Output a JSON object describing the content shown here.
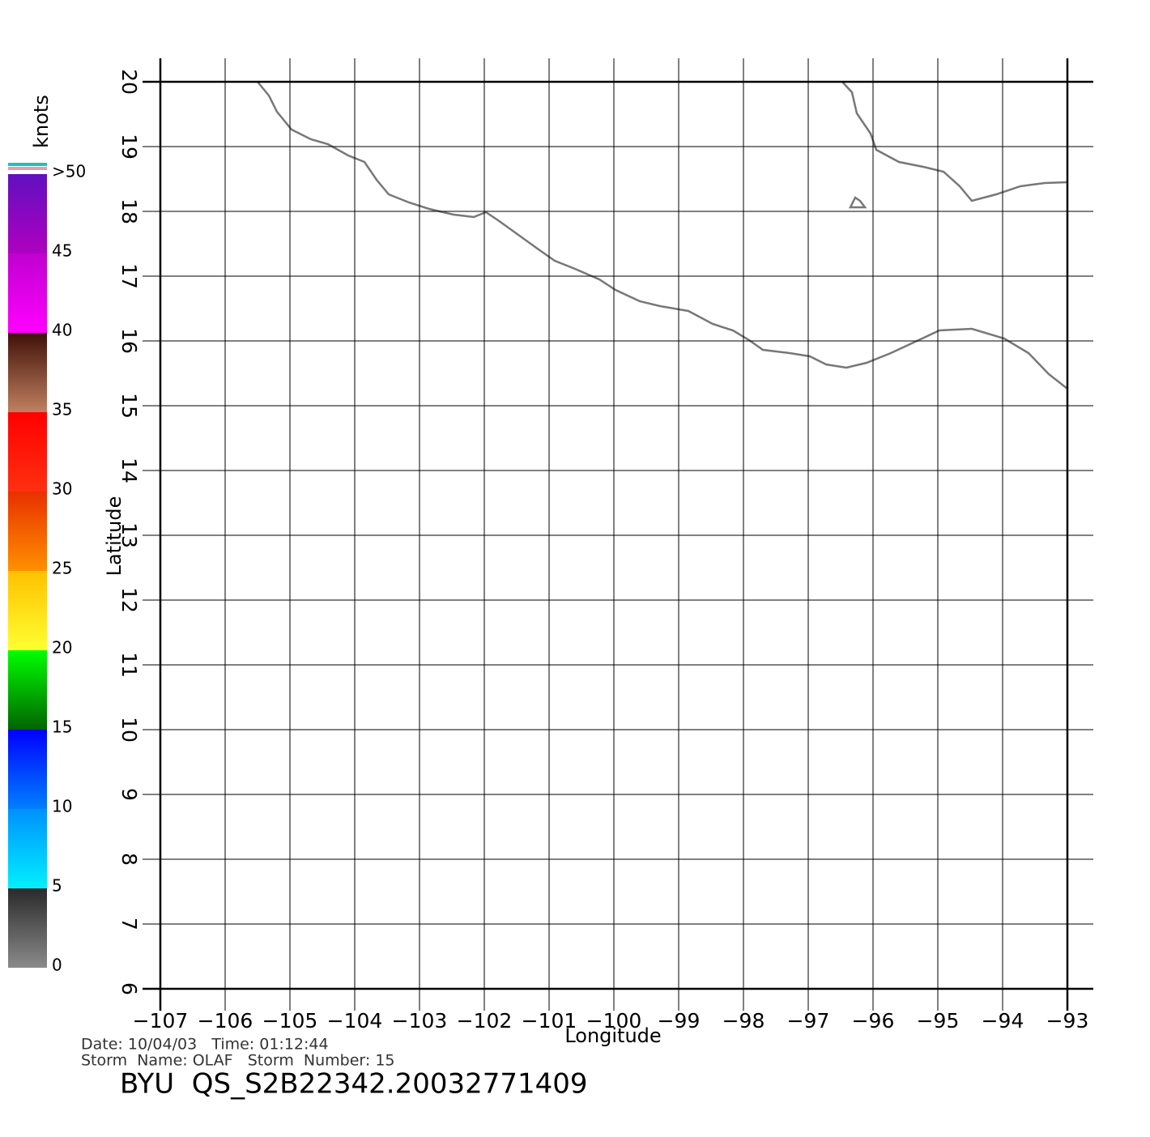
{
  "chart_data": {
    "type": "map",
    "title": "BYU  QS_S2B22342.20032771409",
    "footer": [
      "Date: 10/04/03   Time: 01:12:44",
      "Storm  Name: OLAF   Storm  Number: 15"
    ],
    "x_label": "Longitude",
    "y_label": "Latitude",
    "xlim": [
      -107,
      -93
    ],
    "ylim": [
      6,
      20
    ],
    "xticks": [
      {
        "value": -107,
        "label": "−107"
      },
      {
        "value": -106,
        "label": "−106"
      },
      {
        "value": -105,
        "label": "−105"
      },
      {
        "value": -104,
        "label": "−104"
      },
      {
        "value": -103,
        "label": "−103"
      },
      {
        "value": -102,
        "label": "−102"
      },
      {
        "value": -101,
        "label": "−101"
      },
      {
        "value": -100,
        "label": "−100"
      },
      {
        "value": -99,
        "label": "−99"
      },
      {
        "value": -98,
        "label": "−98"
      },
      {
        "value": -97,
        "label": "−97"
      },
      {
        "value": -96,
        "label": "−96"
      },
      {
        "value": -95,
        "label": "−95"
      },
      {
        "value": -94,
        "label": "−94"
      },
      {
        "value": -93,
        "label": "−93"
      }
    ],
    "yticks": [
      6,
      7,
      8,
      9,
      10,
      11,
      12,
      13,
      14,
      15,
      16,
      17,
      18,
      19,
      20
    ],
    "grid": true,
    "colorbar": {
      "label": "knots",
      "ticks": [
        0,
        5,
        10,
        15,
        20,
        25,
        30,
        35,
        40,
        45,
        {
          "value": 50,
          "label": ">50"
        }
      ],
      "band_colors": [
        [
          "#8a8a8a",
          "#2a2a2a"
        ],
        [
          "#00f0ff",
          "#0090ff"
        ],
        [
          "#0080ff",
          "#0000ff"
        ],
        [
          "#006400",
          "#00ff00"
        ],
        [
          "#ffff30",
          "#ffc000"
        ],
        [
          "#ff9000",
          "#e83000"
        ],
        [
          "#ff3010",
          "#ff0000"
        ],
        [
          "#c08060",
          "#401008"
        ],
        [
          "#ff00ff",
          "#c000d0"
        ],
        [
          "#b000c0",
          "#6010c0"
        ]
      ]
    }
  }
}
